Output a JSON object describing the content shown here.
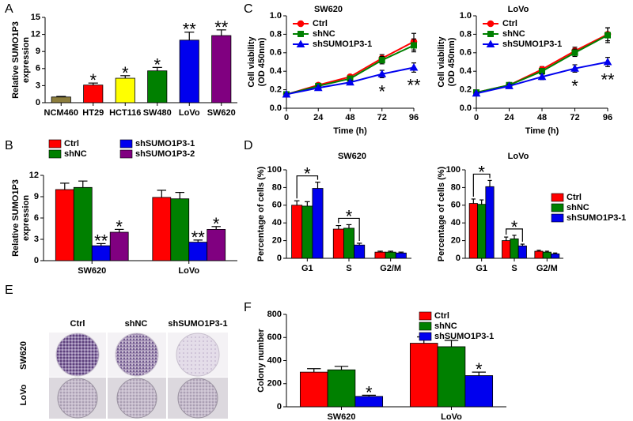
{
  "panel_labels": [
    "A",
    "B",
    "C",
    "D",
    "E",
    "F"
  ],
  "colony_panel": {
    "columns": [
      "Ctrl",
      "shNC",
      "shSUMO1P3-1"
    ],
    "rows": [
      "SW620",
      "LoVo"
    ]
  },
  "chart_data": [
    {
      "type": "bar",
      "ylabel": [
        "Relative SUMO1P3",
        "expression"
      ],
      "categories": [
        "NCM460",
        "HT29",
        "HCT116",
        "SW480",
        "LoVo",
        "SW620"
      ],
      "values": [
        1,
        3.1,
        4.3,
        5.6,
        11,
        11.8
      ],
      "errors": [
        0.1,
        0.35,
        0.45,
        0.6,
        1.4,
        1.0
      ],
      "colors": [
        "#8c7d3c",
        "#ff0000",
        "#ffff00",
        "#008000",
        "#0000ee",
        "#800080"
      ],
      "ylim": [
        0,
        15
      ],
      "yticks": [
        0,
        3,
        6,
        9,
        12,
        15
      ],
      "legend": "none",
      "annotations": [
        {
          "text": "*",
          "index": 1
        },
        {
          "text": "*",
          "index": 2
        },
        {
          "text": "*",
          "index": 3
        },
        {
          "text": "**",
          "index": 4
        },
        {
          "text": "**",
          "index": 5
        }
      ]
    },
    {
      "type": "line",
      "title": "SW620",
      "xlabel": "Time (h)",
      "ylabel": [
        "Cell viability",
        "(OD 450nm)"
      ],
      "x": [
        0,
        24,
        48,
        72,
        96
      ],
      "xlim": [
        0,
        96
      ],
      "xticks": [
        0,
        24,
        48,
        72,
        96
      ],
      "ylim": [
        0,
        1
      ],
      "yticks": [
        {
          "value": 0,
          "label": "0.0"
        },
        0.2,
        0.4,
        0.6,
        0.8,
        {
          "value": 1,
          "label": "1.0"
        }
      ],
      "legend": "top-left",
      "series": [
        {
          "name": "Ctrl",
          "color": "#ff0000",
          "marker": "circle",
          "values": [
            0.15,
            0.25,
            0.34,
            0.54,
            0.72
          ],
          "errors": [
            0.01,
            0.02,
            0.02,
            0.04,
            0.09
          ]
        },
        {
          "name": "shNC",
          "color": "#008000",
          "marker": "square",
          "values": [
            0.15,
            0.24,
            0.32,
            0.52,
            0.68
          ],
          "errors": [
            0.01,
            0.02,
            0.02,
            0.04,
            0.07
          ]
        },
        {
          "name": "shSUMO1P3-1",
          "color": "#0000ee",
          "marker": "triangle",
          "values": [
            0.15,
            0.22,
            0.28,
            0.37,
            0.44
          ],
          "errors": [
            0.01,
            0.02,
            0.02,
            0.04,
            0.05
          ]
        }
      ],
      "annotations": [
        {
          "text": "*",
          "series": 2,
          "index": 3
        },
        {
          "text": "**",
          "series": 2,
          "index": 4
        }
      ]
    },
    {
      "type": "line",
      "title": "LoVo",
      "xlabel": "Time (h)",
      "ylabel": [
        "Cell viability",
        "(OD 450nm)"
      ],
      "x": [
        0,
        24,
        48,
        72,
        96
      ],
      "xlim": [
        0,
        96
      ],
      "xticks": [
        0,
        24,
        48,
        72,
        96
      ],
      "ylim": [
        0,
        1
      ],
      "yticks": [
        {
          "value": 0,
          "label": "0.0"
        },
        0.2,
        0.4,
        0.6,
        0.8,
        {
          "value": 1,
          "label": "1.0"
        }
      ],
      "legend": "top-left",
      "series": [
        {
          "name": "Ctrl",
          "color": "#ff0000",
          "marker": "circle",
          "values": [
            0.17,
            0.25,
            0.42,
            0.62,
            0.8
          ],
          "errors": [
            0.01,
            0.02,
            0.03,
            0.04,
            0.07
          ]
        },
        {
          "name": "shNC",
          "color": "#008000",
          "marker": "square",
          "values": [
            0.17,
            0.25,
            0.4,
            0.6,
            0.79
          ],
          "errors": [
            0.01,
            0.02,
            0.03,
            0.04,
            0.08
          ]
        },
        {
          "name": "shSUMO1P3-1",
          "color": "#0000ee",
          "marker": "triangle",
          "values": [
            0.16,
            0.24,
            0.34,
            0.43,
            0.5
          ],
          "errors": [
            0.01,
            0.02,
            0.03,
            0.04,
            0.05
          ]
        }
      ],
      "annotations": [
        {
          "text": "*",
          "series": 2,
          "index": 3
        },
        {
          "text": "**",
          "series": 2,
          "index": 4
        }
      ]
    },
    {
      "type": "bar",
      "ylabel": [
        "Relative SUMO1P3",
        "expression"
      ],
      "categories": [
        "SW620",
        "LoVo"
      ],
      "ylim": [
        0,
        12
      ],
      "yticks": [
        0,
        3,
        6,
        9,
        12
      ],
      "legend": "top-left",
      "series": [
        {
          "name": "Ctrl",
          "color": "#ff0000",
          "values": [
            10,
            8.9
          ],
          "errors": [
            0.9,
            1.0
          ]
        },
        {
          "name": "shNC",
          "color": "#008000",
          "values": [
            10.3,
            8.7
          ],
          "errors": [
            0.9,
            0.9
          ]
        },
        {
          "name": "shSUMO1P3-1",
          "color": "#0000ee",
          "values": [
            2.1,
            2.6
          ],
          "errors": [
            0.3,
            0.3
          ]
        },
        {
          "name": "shSUMO1P3-2",
          "color": "#800080",
          "values": [
            4,
            4.4
          ],
          "errors": [
            0.4,
            0.4
          ]
        }
      ],
      "annotations": [
        {
          "text": "**",
          "series": 2,
          "index": 0
        },
        {
          "text": "*",
          "series": 3,
          "index": 0
        },
        {
          "text": "**",
          "series": 2,
          "index": 1
        },
        {
          "text": "*",
          "series": 3,
          "index": 1
        }
      ]
    },
    {
      "type": "bar",
      "title": "SW620",
      "ylabel": "Percentage of cells (%)",
      "categories": [
        "G1",
        "S",
        "G2/M"
      ],
      "ylim": [
        0,
        100
      ],
      "yticks": [
        0,
        20,
        40,
        60,
        80,
        100
      ],
      "legend": "none",
      "series": [
        {
          "name": "Ctrl",
          "color": "#ff0000",
          "values": [
            60,
            33,
            7
          ],
          "errors": [
            5,
            4,
            1
          ]
        },
        {
          "name": "shNC",
          "color": "#008000",
          "values": [
            59,
            34,
            7
          ],
          "errors": [
            5,
            4,
            1
          ]
        },
        {
          "name": "shSUMO1P3-1",
          "color": "#0000ee",
          "values": [
            79,
            15,
            6
          ],
          "errors": [
            7,
            2,
            1
          ]
        }
      ],
      "annotations": [
        {
          "text": "*",
          "index": 0,
          "bracket": true
        },
        {
          "text": "*",
          "index": 1,
          "bracket": true
        }
      ]
    },
    {
      "type": "bar",
      "title": "LoVo",
      "ylabel": "Percentage of cells (%)",
      "categories": [
        "G1",
        "S",
        "G2/M"
      ],
      "ylim": [
        0,
        100
      ],
      "yticks": [
        0,
        20,
        40,
        60,
        80,
        100
      ],
      "legend": "top-right",
      "series": [
        {
          "name": "Ctrl",
          "color": "#ff0000",
          "values": [
            62,
            20,
            8
          ],
          "errors": [
            5,
            4,
            1
          ]
        },
        {
          "name": "shNC",
          "color": "#008000",
          "values": [
            61,
            22,
            7
          ],
          "errors": [
            5,
            4,
            1
          ]
        },
        {
          "name": "shSUMO1P3-1",
          "color": "#0000ee",
          "values": [
            81,
            14,
            5
          ],
          "errors": [
            7,
            2,
            1
          ]
        }
      ],
      "annotations": [
        {
          "text": "*",
          "index": 0,
          "bracket": true
        },
        {
          "text": "*",
          "index": 1,
          "bracket": true
        }
      ]
    },
    {
      "type": "bar",
      "ylabel": "Colony number",
      "categories": [
        "SW620",
        "LoVo"
      ],
      "ylim": [
        0,
        800
      ],
      "yticks": [
        0,
        200,
        400,
        600,
        800
      ],
      "legend": "top-right",
      "series": [
        {
          "name": "Ctrl",
          "color": "#ff0000",
          "values": [
            300,
            550
          ],
          "errors": [
            30,
            55
          ]
        },
        {
          "name": "shNC",
          "color": "#008000",
          "values": [
            320,
            520
          ],
          "errors": [
            30,
            55
          ]
        },
        {
          "name": "shSUMO1P3-1",
          "color": "#0000ee",
          "values": [
            90,
            270
          ],
          "errors": [
            10,
            30
          ]
        }
      ],
      "annotations": [
        {
          "text": "*",
          "series": 2,
          "index": 0
        },
        {
          "text": "*",
          "series": 2,
          "index": 1
        }
      ]
    }
  ]
}
